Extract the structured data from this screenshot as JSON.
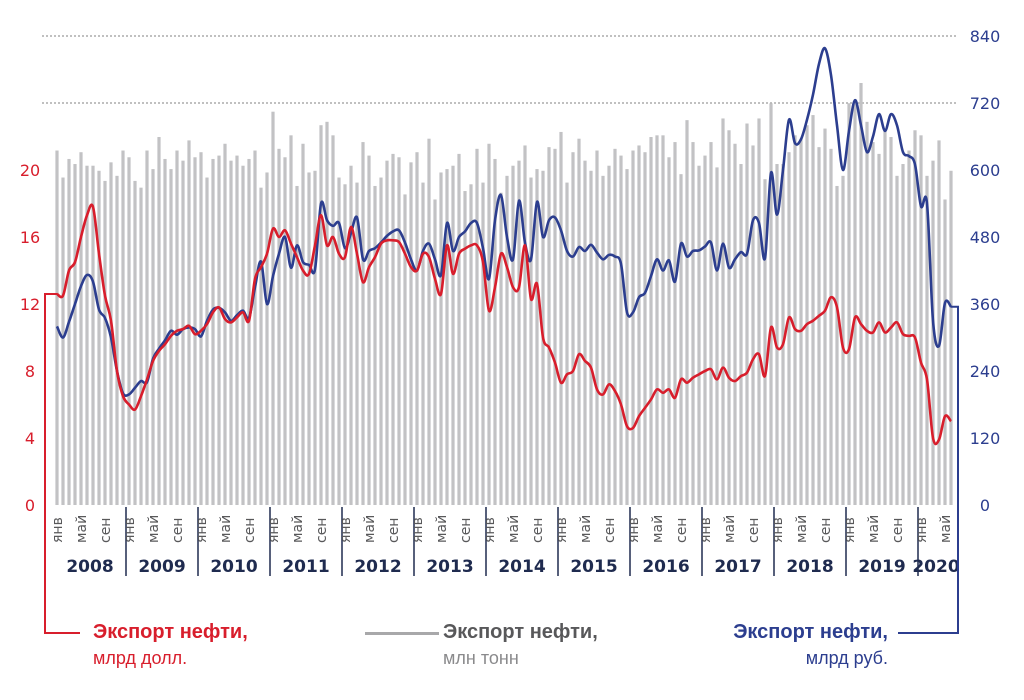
{
  "chart_data": {
    "type": "bar+line",
    "period": {
      "start": "2008-01",
      "end": "2020-06",
      "step": "month"
    },
    "years": [
      "2008",
      "2009",
      "2010",
      "2011",
      "2012",
      "2013",
      "2014",
      "2015",
      "2016",
      "2017",
      "2018",
      "2019",
      "2020"
    ],
    "month_labels": [
      "янв",
      "май",
      "сен"
    ],
    "left_axis": {
      "ticks": [
        0,
        4,
        8,
        12,
        16,
        20
      ],
      "range": [
        0,
        25
      ],
      "color": "#d81e2c"
    },
    "right_axis": {
      "ticks": [
        0,
        120,
        240,
        360,
        480,
        600,
        720,
        840
      ],
      "range": [
        0,
        840
      ],
      "color": "#2c3e8f"
    },
    "gridlines_dotted": [
      720,
      840
    ],
    "series": [
      {
        "name": "Экспорт нефти, млрд долл.",
        "legend_title": "Экспорт нефти,",
        "legend_unit": "млрд долл.",
        "axis": "left",
        "type": "line",
        "color": "#d81e2c",
        "values": [
          12.6,
          12.5,
          14.0,
          14.5,
          16.0,
          17.3,
          17.8,
          15.0,
          12.5,
          11.0,
          8.0,
          6.5,
          6.0,
          5.7,
          6.5,
          7.5,
          8.6,
          9.2,
          9.6,
          10.1,
          10.4,
          10.5,
          10.7,
          10.2,
          10.4,
          10.8,
          11.5,
          11.8,
          11.1,
          10.9,
          11.2,
          11.5,
          11.0,
          13.5,
          14.2,
          15.0,
          16.5,
          16.0,
          16.4,
          15.6,
          14.8,
          14.0,
          13.8,
          15.5,
          17.3,
          15.5,
          16.0,
          15.0,
          14.8,
          16.6,
          15.0,
          13.3,
          14.2,
          14.8,
          15.6,
          15.8,
          15.8,
          15.7,
          15.0,
          14.2,
          14.0,
          15.0,
          14.8,
          13.5,
          12.6,
          15.5,
          13.8,
          15.0,
          15.3,
          15.5,
          15.5,
          14.5,
          11.6,
          13.0,
          15.0,
          14.2,
          13.0,
          13.0,
          15.5,
          12.3,
          13.2,
          10.0,
          9.4,
          8.5,
          7.3,
          7.8,
          8.0,
          9.0,
          8.6,
          8.2,
          6.9,
          6.6,
          7.2,
          6.8,
          6.0,
          4.7,
          4.6,
          5.3,
          5.8,
          6.3,
          6.9,
          6.7,
          6.9,
          6.4,
          7.5,
          7.3,
          7.6,
          7.8,
          8.0,
          8.1,
          7.5,
          8.2,
          7.6,
          7.4,
          7.7,
          7.9,
          8.7,
          9.0,
          7.7,
          10.6,
          9.4,
          9.6,
          11.2,
          10.5,
          10.4,
          10.8,
          11.0,
          11.3,
          11.6,
          12.4,
          11.8,
          9.4,
          9.3,
          11.2,
          10.8,
          10.4,
          10.3,
          10.9,
          10.3,
          10.6,
          10.9,
          10.2,
          10.1,
          10.0,
          8.5,
          7.5,
          4.0,
          3.9,
          5.3,
          5.0
        ]
      },
      {
        "name": "Экспорт нефти, млн тонн",
        "legend_title": "Экспорт нефти,",
        "legend_unit": "млн тонн",
        "axis": "unlabeled",
        "type": "bar",
        "color": "#c2c2c4",
        "values": [
          21.0,
          19.4,
          20.5,
          20.2,
          20.9,
          20.1,
          20.1,
          19.8,
          19.2,
          20.3,
          19.5,
          21.0,
          20.6,
          19.2,
          18.8,
          21.0,
          19.9,
          21.8,
          20.5,
          19.9,
          21.0,
          20.4,
          21.6,
          20.6,
          20.9,
          19.4,
          20.5,
          20.7,
          21.4,
          20.4,
          20.7,
          20.1,
          20.5,
          21.0,
          18.8,
          19.7,
          23.3,
          21.1,
          20.6,
          21.9,
          18.9,
          21.4,
          19.7,
          19.8,
          22.5,
          22.7,
          21.9,
          19.4,
          19.0,
          20.1,
          19.1,
          21.5,
          20.7,
          18.9,
          19.4,
          20.4,
          20.8,
          20.6,
          18.4,
          20.3,
          20.9,
          19.1,
          21.7,
          18.1,
          19.7,
          19.9,
          20.1,
          20.8,
          18.6,
          19.0,
          21.1,
          19.1,
          21.4,
          20.5,
          18.5,
          19.5,
          20.1,
          20.4,
          21.3,
          19.4,
          19.9,
          19.8,
          21.2,
          21.1,
          22.1,
          19.1,
          20.9,
          21.7,
          20.4,
          19.8,
          21.0,
          19.5,
          20.1,
          21.1,
          20.7,
          19.9,
          21.0,
          21.3,
          20.9,
          21.8,
          21.9,
          21.9,
          20.6,
          21.5,
          19.6,
          22.8,
          21.5,
          20.1,
          20.7,
          21.5,
          20.0,
          22.9,
          22.2,
          21.4,
          20.2,
          22.6,
          21.3,
          22.9,
          19.3,
          23.8,
          20.2,
          20.2,
          20.9,
          21.9,
          21.7,
          22.5,
          23.1,
          21.2,
          22.3,
          21.1,
          18.9,
          19.5,
          23.8,
          24.0,
          25.0,
          22.7,
          21.5,
          20.8,
          22.3,
          21.8,
          19.5,
          20.2,
          21.0,
          22.2,
          21.9,
          19.5,
          20.4,
          21.6,
          18.1,
          19.8
        ]
      },
      {
        "name": "Экспорт нефти, млрд руб.",
        "legend_title": "Экспорт нефти,",
        "legend_unit": "млрд руб.",
        "axis": "right",
        "type": "line",
        "color": "#2c3e8f",
        "values": [
          320,
          300,
          328,
          360,
          392,
          412,
          400,
          350,
          335,
          300,
          240,
          200,
          198,
          210,
          222,
          220,
          262,
          280,
          295,
          312,
          305,
          315,
          318,
          315,
          302,
          330,
          350,
          353,
          345,
          330,
          340,
          348,
          335,
          390,
          436,
          360,
          410,
          450,
          480,
          425,
          465,
          435,
          430,
          422,
          540,
          510,
          500,
          505,
          460,
          487,
          515,
          440,
          455,
          460,
          470,
          482,
          490,
          492,
          470,
          440,
          420,
          455,
          468,
          440,
          412,
          505,
          455,
          480,
          490,
          505,
          505,
          460,
          405,
          510,
          555,
          480,
          440,
          545,
          470,
          440,
          543,
          480,
          510,
          515,
          492,
          455,
          445,
          462,
          455,
          466,
          452,
          440,
          448,
          445,
          432,
          345,
          345,
          372,
          380,
          410,
          440,
          420,
          438,
          400,
          468,
          445,
          455,
          456,
          463,
          470,
          420,
          468,
          425,
          440,
          453,
          450,
          510,
          505,
          442,
          595,
          520,
          600,
          690,
          648,
          655,
          690,
          735,
          790,
          818,
          770,
          680,
          600,
          670,
          725,
          680,
          632,
          660,
          700,
          670,
          700,
          680,
          632,
          625,
          610,
          535,
          540,
          330,
          285,
          362,
          355
        ]
      }
    ]
  }
}
